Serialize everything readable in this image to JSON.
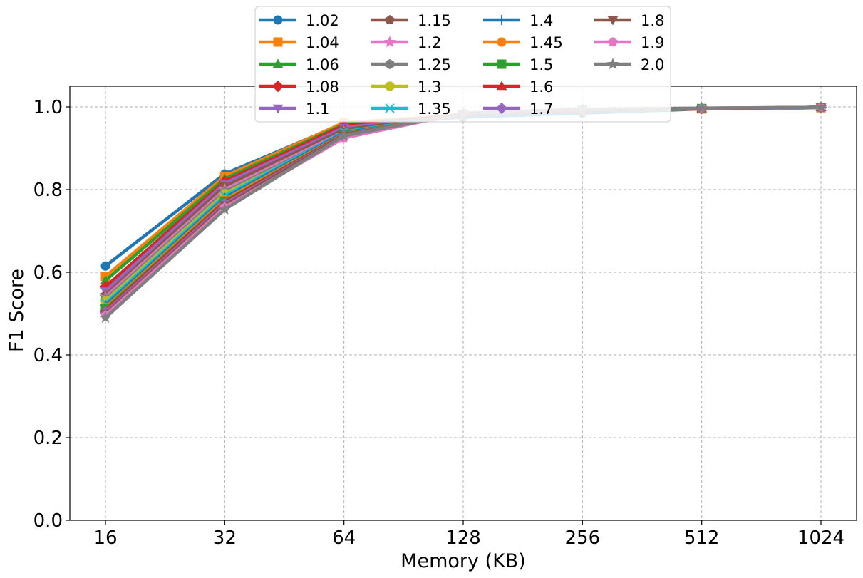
{
  "chart_data": {
    "type": "line",
    "title": "",
    "xlabel": "Memory (KB)",
    "ylabel": "F1 Score",
    "categories": [
      "16",
      "32",
      "64",
      "128",
      "256",
      "512",
      "1024"
    ],
    "ylim": [
      0,
      1.05
    ],
    "yticks": [
      "0.0",
      "0.2",
      "0.4",
      "0.6",
      "0.8",
      "1.0"
    ],
    "grid": true,
    "legend_position": "top-center",
    "legend_columns": 4,
    "series": [
      {
        "name": "1.02",
        "color": "#1f77b4",
        "marker": "circle",
        "values": [
          0.615,
          0.838,
          0.96,
          0.975,
          0.985,
          0.995,
          0.998
        ]
      },
      {
        "name": "1.04",
        "color": "#ff7f0e",
        "marker": "square",
        "values": [
          0.59,
          0.832,
          0.962,
          0.98,
          0.99,
          0.995,
          0.998
        ]
      },
      {
        "name": "1.06",
        "color": "#2ca02c",
        "marker": "triangle-up",
        "values": [
          0.58,
          0.826,
          0.958,
          0.98,
          0.99,
          0.996,
          0.999
        ]
      },
      {
        "name": "1.08",
        "color": "#d62728",
        "marker": "diamond",
        "values": [
          0.565,
          0.82,
          0.955,
          0.98,
          0.99,
          0.996,
          0.999
        ]
      },
      {
        "name": "1.1",
        "color": "#9467bd",
        "marker": "triangle-down",
        "values": [
          0.555,
          0.815,
          0.95,
          0.98,
          0.99,
          0.996,
          0.999
        ]
      },
      {
        "name": "1.15",
        "color": "#8c564b",
        "marker": "pentagon",
        "values": [
          0.545,
          0.808,
          0.945,
          0.98,
          0.99,
          0.996,
          0.999
        ]
      },
      {
        "name": "1.2",
        "color": "#e377c2",
        "marker": "star",
        "values": [
          0.54,
          0.8,
          0.94,
          0.98,
          0.991,
          0.996,
          0.999
        ]
      },
      {
        "name": "1.25",
        "color": "#7f7f7f",
        "marker": "hexagon",
        "values": [
          0.535,
          0.795,
          0.937,
          0.98,
          0.991,
          0.996,
          0.999
        ]
      },
      {
        "name": "1.3",
        "color": "#bcbd22",
        "marker": "octagon",
        "values": [
          0.53,
          0.79,
          0.935,
          0.98,
          0.991,
          0.996,
          0.999
        ]
      },
      {
        "name": "1.35",
        "color": "#17becf",
        "marker": "x",
        "values": [
          0.525,
          0.785,
          0.94,
          0.98,
          0.991,
          0.996,
          0.999
        ]
      },
      {
        "name": "1.4",
        "color": "#1f77b4",
        "marker": "plus",
        "values": [
          0.52,
          0.78,
          0.938,
          0.98,
          0.991,
          0.996,
          0.999
        ]
      },
      {
        "name": "1.45",
        "color": "#ff7f0e",
        "marker": "circle",
        "values": [
          0.515,
          0.776,
          0.935,
          0.982,
          0.992,
          0.996,
          0.999
        ]
      },
      {
        "name": "1.5",
        "color": "#2ca02c",
        "marker": "square",
        "values": [
          0.512,
          0.772,
          0.934,
          0.982,
          0.992,
          0.996,
          0.999
        ]
      },
      {
        "name": "1.6",
        "color": "#d62728",
        "marker": "triangle-up",
        "values": [
          0.508,
          0.77,
          0.933,
          0.982,
          0.992,
          0.996,
          0.999
        ]
      },
      {
        "name": "1.7",
        "color": "#9467bd",
        "marker": "diamond",
        "values": [
          0.504,
          0.766,
          0.932,
          0.983,
          0.993,
          0.996,
          0.999
        ]
      },
      {
        "name": "1.8",
        "color": "#8c564b",
        "marker": "triangle-down",
        "values": [
          0.5,
          0.762,
          0.931,
          0.984,
          0.993,
          0.996,
          0.999
        ]
      },
      {
        "name": "1.9",
        "color": "#e377c2",
        "marker": "pentagon",
        "values": [
          0.496,
          0.757,
          0.925,
          0.985,
          0.994,
          0.997,
          0.999
        ]
      },
      {
        "name": "2.0",
        "color": "#7f7f7f",
        "marker": "star",
        "values": [
          0.49,
          0.752,
          0.93,
          0.985,
          0.994,
          0.997,
          0.999
        ]
      }
    ]
  }
}
